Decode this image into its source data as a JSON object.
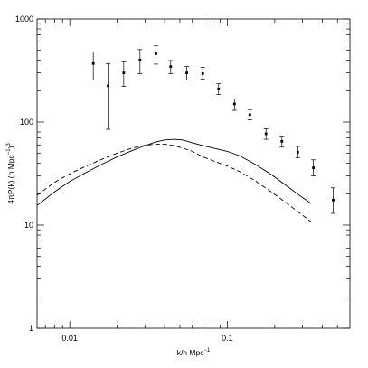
{
  "chart_data": {
    "type": "scatter",
    "title": "",
    "xlabel": {
      "main": "k/h Mpc",
      "sup": "−1"
    },
    "ylabel": {
      "main": "4πP(k) (h Mpc",
      "sup": "−1",
      "suffix": ")",
      "sup2": "3"
    },
    "x_scale": "log",
    "y_scale": "log",
    "xlim": [
      0.0062,
      0.6
    ],
    "ylim": [
      1,
      1000
    ],
    "grid": false,
    "legend": "none",
    "x_ticks": [
      {
        "value": 0.01,
        "label": "0.01"
      },
      {
        "value": 0.1,
        "label": "0.1"
      }
    ],
    "y_ticks": [
      {
        "value": 1,
        "label": "1"
      },
      {
        "value": 10,
        "label": "10"
      },
      {
        "value": 100,
        "label": "100"
      },
      {
        "value": 1000,
        "label": "1000"
      }
    ],
    "series": [
      {
        "style": "points-with-errorbars",
        "color": "#000000",
        "points": [
          {
            "x": 0.0141,
            "y": 370,
            "ylo": 255,
            "yhi": 480
          },
          {
            "x": 0.0175,
            "y": 225,
            "ylo": 85,
            "yhi": 370
          },
          {
            "x": 0.022,
            "y": 300,
            "ylo": 222,
            "yhi": 385
          },
          {
            "x": 0.0279,
            "y": 400,
            "ylo": 295,
            "yhi": 505
          },
          {
            "x": 0.0352,
            "y": 460,
            "ylo": 365,
            "yhi": 548
          },
          {
            "x": 0.0437,
            "y": 345,
            "ylo": 295,
            "yhi": 395
          },
          {
            "x": 0.0553,
            "y": 300,
            "ylo": 255,
            "yhi": 345
          },
          {
            "x": 0.0698,
            "y": 295,
            "ylo": 260,
            "yhi": 340
          },
          {
            "x": 0.088,
            "y": 210,
            "ylo": 185,
            "yhi": 235
          },
          {
            "x": 0.111,
            "y": 150,
            "ylo": 130,
            "yhi": 168
          },
          {
            "x": 0.139,
            "y": 118,
            "ylo": 105,
            "yhi": 132
          },
          {
            "x": 0.176,
            "y": 77,
            "ylo": 68,
            "yhi": 86
          },
          {
            "x": 0.222,
            "y": 65,
            "ylo": 57,
            "yhi": 73
          },
          {
            "x": 0.28,
            "y": 51,
            "ylo": 45,
            "yhi": 58
          },
          {
            "x": 0.352,
            "y": 36,
            "ylo": 30,
            "yhi": 43
          },
          {
            "x": 0.47,
            "y": 17.5,
            "ylo": 13,
            "yhi": 23
          }
        ]
      },
      {
        "style": "solid-line",
        "color": "#000000",
        "points": [
          {
            "x": 0.0062,
            "y": 15.5
          },
          {
            "x": 0.008,
            "y": 21
          },
          {
            "x": 0.01,
            "y": 26.5
          },
          {
            "x": 0.0125,
            "y": 32
          },
          {
            "x": 0.016,
            "y": 39
          },
          {
            "x": 0.02,
            "y": 46
          },
          {
            "x": 0.025,
            "y": 53
          },
          {
            "x": 0.03,
            "y": 59
          },
          {
            "x": 0.035,
            "y": 64
          },
          {
            "x": 0.04,
            "y": 67
          },
          {
            "x": 0.046,
            "y": 68
          },
          {
            "x": 0.052,
            "y": 67
          },
          {
            "x": 0.06,
            "y": 63
          },
          {
            "x": 0.07,
            "y": 59
          },
          {
            "x": 0.085,
            "y": 55
          },
          {
            "x": 0.1,
            "y": 52
          },
          {
            "x": 0.12,
            "y": 47
          },
          {
            "x": 0.15,
            "y": 39
          },
          {
            "x": 0.19,
            "y": 31
          },
          {
            "x": 0.23,
            "y": 25
          },
          {
            "x": 0.28,
            "y": 20
          },
          {
            "x": 0.34,
            "y": 16.2
          }
        ]
      },
      {
        "style": "dashed-line",
        "color": "#000000",
        "points": [
          {
            "x": 0.0062,
            "y": 19.5
          },
          {
            "x": 0.008,
            "y": 26
          },
          {
            "x": 0.01,
            "y": 31.5
          },
          {
            "x": 0.0125,
            "y": 37
          },
          {
            "x": 0.016,
            "y": 43.5
          },
          {
            "x": 0.02,
            "y": 50
          },
          {
            "x": 0.025,
            "y": 56
          },
          {
            "x": 0.03,
            "y": 59.5
          },
          {
            "x": 0.035,
            "y": 61
          },
          {
            "x": 0.04,
            "y": 61
          },
          {
            "x": 0.046,
            "y": 59
          },
          {
            "x": 0.052,
            "y": 56
          },
          {
            "x": 0.06,
            "y": 52
          },
          {
            "x": 0.07,
            "y": 46
          },
          {
            "x": 0.085,
            "y": 41
          },
          {
            "x": 0.1,
            "y": 37.5
          },
          {
            "x": 0.12,
            "y": 33
          },
          {
            "x": 0.15,
            "y": 27
          },
          {
            "x": 0.19,
            "y": 21
          },
          {
            "x": 0.23,
            "y": 17
          },
          {
            "x": 0.28,
            "y": 13.5
          },
          {
            "x": 0.34,
            "y": 10.8
          }
        ]
      }
    ]
  }
}
